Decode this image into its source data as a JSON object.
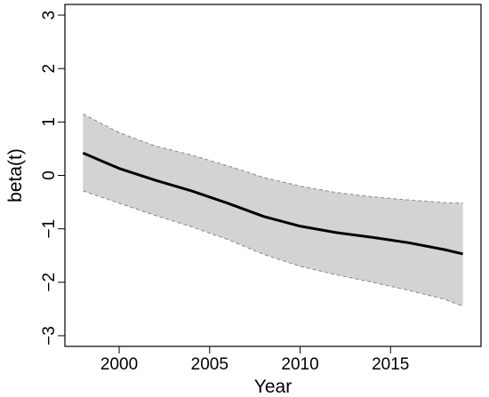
{
  "chart_data": {
    "type": "area",
    "title": "",
    "xlabel": "Year",
    "ylabel": "beta(t)",
    "xlim": [
      1997,
      2020
    ],
    "ylim": [
      -3.2,
      3.2
    ],
    "xticks": [
      2000,
      2005,
      2010,
      2015
    ],
    "yticks": [
      -3,
      -2,
      -1,
      0,
      1,
      2,
      3
    ],
    "grid": false,
    "legend": "none",
    "series": [
      {
        "role": "estimate",
        "color": "#000000",
        "x": [
          1998,
          2000,
          2002,
          2004,
          2006,
          2008,
          2010,
          2012,
          2014,
          2016,
          2018,
          2019
        ],
        "values": [
          0.42,
          0.13,
          -0.09,
          -0.29,
          -0.52,
          -0.77,
          -0.95,
          -1.07,
          -1.16,
          -1.26,
          -1.39,
          -1.47
        ]
      },
      {
        "role": "upper-band",
        "color": "#888888",
        "x": [
          1998,
          2000,
          2002,
          2004,
          2006,
          2008,
          2010,
          2012,
          2014,
          2016,
          2018,
          2019
        ],
        "values": [
          1.15,
          0.8,
          0.55,
          0.38,
          0.18,
          -0.04,
          -0.2,
          -0.32,
          -0.4,
          -0.46,
          -0.51,
          -0.52
        ]
      },
      {
        "role": "lower-band",
        "color": "#888888",
        "x": [
          1998,
          2000,
          2002,
          2004,
          2006,
          2008,
          2010,
          2012,
          2014,
          2016,
          2018,
          2019
        ],
        "values": [
          -0.29,
          -0.52,
          -0.75,
          -0.96,
          -1.2,
          -1.48,
          -1.7,
          -1.86,
          -2.0,
          -2.15,
          -2.32,
          -2.45
        ]
      }
    ],
    "colors": {
      "band_fill": "#d3d3d3",
      "band_edge": "#888888",
      "line": "#000000",
      "frame": "#000000"
    }
  }
}
